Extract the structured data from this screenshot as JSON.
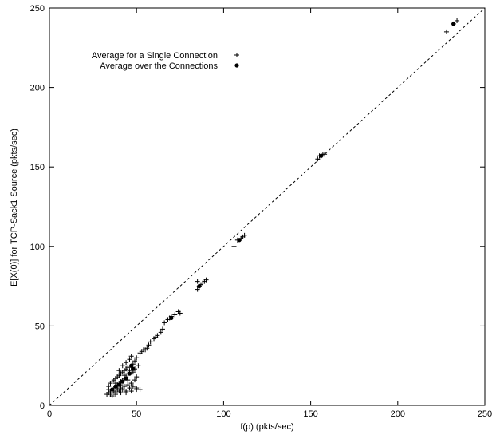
{
  "chart_data": {
    "type": "scatter",
    "title": "",
    "xlabel": "f(p) (pkts/sec)",
    "ylabel": "E[X(0)] for TCP-Sack1 Source (pkts/sec)",
    "xlim": [
      0,
      250
    ],
    "ylim": [
      0,
      250
    ],
    "x_ticks": [
      0,
      50,
      100,
      150,
      200,
      250
    ],
    "y_ticks": [
      0,
      50,
      100,
      150,
      200,
      250
    ],
    "grid": false,
    "legend_position": "top-left",
    "reference_line": {
      "style": "dashed",
      "from": [
        0,
        0
      ],
      "to": [
        250,
        250
      ]
    },
    "series": [
      {
        "name": "Average for a Single Connection",
        "marker": "plus",
        "color": "#000000",
        "points": [
          [
            33,
            7
          ],
          [
            34,
            8
          ],
          [
            35,
            9
          ],
          [
            35,
            7
          ],
          [
            36,
            10
          ],
          [
            36,
            8
          ],
          [
            37,
            11
          ],
          [
            37,
            9
          ],
          [
            38,
            12
          ],
          [
            38,
            8
          ],
          [
            39,
            13
          ],
          [
            39,
            10
          ],
          [
            40,
            14
          ],
          [
            40,
            9
          ],
          [
            41,
            15
          ],
          [
            41,
            11
          ],
          [
            42,
            16
          ],
          [
            42,
            10
          ],
          [
            43,
            17
          ],
          [
            43,
            12
          ],
          [
            44,
            18
          ],
          [
            44,
            9
          ],
          [
            45,
            20
          ],
          [
            45,
            13
          ],
          [
            46,
            22
          ],
          [
            46,
            11
          ],
          [
            47,
            24
          ],
          [
            47,
            14
          ],
          [
            48,
            26
          ],
          [
            48,
            12
          ],
          [
            49,
            28
          ],
          [
            49,
            16
          ],
          [
            50,
            30
          ],
          [
            50,
            10
          ],
          [
            34,
            12
          ],
          [
            35,
            14
          ],
          [
            36,
            15
          ],
          [
            37,
            16
          ],
          [
            38,
            17
          ],
          [
            39,
            18
          ],
          [
            40,
            19
          ],
          [
            41,
            20
          ],
          [
            42,
            21
          ],
          [
            43,
            22
          ],
          [
            44,
            23
          ],
          [
            45,
            24
          ],
          [
            40,
            22
          ],
          [
            42,
            25
          ],
          [
            44,
            27
          ],
          [
            46,
            29
          ],
          [
            47,
            31
          ],
          [
            48,
            21
          ],
          [
            49,
            23
          ],
          [
            51,
            25
          ],
          [
            50,
            18
          ],
          [
            52,
            33
          ],
          [
            53,
            34
          ],
          [
            54,
            35
          ],
          [
            55,
            35
          ],
          [
            56,
            36
          ],
          [
            57,
            38
          ],
          [
            58,
            40
          ],
          [
            60,
            42
          ],
          [
            61,
            43
          ],
          [
            62,
            44
          ],
          [
            64,
            46
          ],
          [
            65,
            48
          ],
          [
            66,
            52
          ],
          [
            68,
            54
          ],
          [
            69,
            55
          ],
          [
            70,
            56
          ],
          [
            72,
            57
          ],
          [
            74,
            59
          ],
          [
            75,
            58
          ],
          [
            85,
            73
          ],
          [
            86,
            75
          ],
          [
            87,
            76
          ],
          [
            88,
            77
          ],
          [
            89,
            78
          ],
          [
            90,
            79
          ],
          [
            85,
            78
          ],
          [
            106,
            100
          ],
          [
            108,
            104
          ],
          [
            110,
            105
          ],
          [
            111,
            106
          ],
          [
            112,
            107
          ],
          [
            154,
            155
          ],
          [
            155,
            157
          ],
          [
            156,
            157
          ],
          [
            157,
            158
          ],
          [
            158,
            158
          ],
          [
            228,
            235
          ],
          [
            232,
            240
          ],
          [
            234,
            242
          ],
          [
            36,
            6
          ],
          [
            38,
            7
          ],
          [
            41,
            8
          ],
          [
            44,
            8
          ],
          [
            47,
            9
          ],
          [
            50,
            11
          ],
          [
            52,
            10
          ],
          [
            34,
            10
          ],
          [
            38,
            14
          ],
          [
            43,
            19
          ],
          [
            45,
            16
          ],
          [
            39,
            11
          ],
          [
            41,
            13
          ]
        ]
      },
      {
        "name": "Average over the Connections",
        "marker": "dot",
        "color": "#000000",
        "points": [
          [
            36,
            10
          ],
          [
            38,
            12
          ],
          [
            40,
            13
          ],
          [
            42,
            15
          ],
          [
            44,
            17
          ],
          [
            46,
            20
          ],
          [
            48,
            23
          ],
          [
            47,
            25
          ],
          [
            70,
            55
          ],
          [
            86,
            75
          ],
          [
            109,
            104
          ],
          [
            156,
            157
          ],
          [
            232,
            240
          ]
        ]
      }
    ]
  }
}
